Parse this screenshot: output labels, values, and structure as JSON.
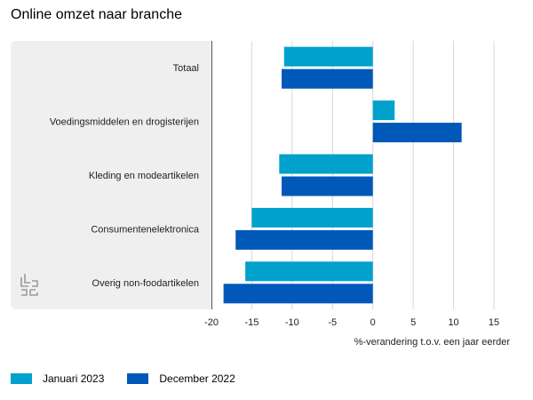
{
  "title": "Online omzet naar branche",
  "colors": {
    "jan2023": "#00A1CD",
    "dec2022": "#0058B8",
    "grid": "#d8d8d8",
    "panel": "#efefef"
  },
  "logo_icon": "cbs-logo-icon",
  "chart_data": {
    "type": "bar",
    "orientation": "horizontal",
    "categories": [
      "Totaal",
      "Voedingsmiddelen en drogisterijen",
      "Kleding en modeartikelen",
      "Consumentenelektronica",
      "Overig non-foodartikelen"
    ],
    "series": [
      {
        "name": "Januari 2023",
        "values": [
          -11,
          2.7,
          -11.6,
          -15,
          -15.8
        ]
      },
      {
        "name": "December 2022",
        "values": [
          -11.3,
          11,
          -11.3,
          -17,
          -18.5
        ]
      }
    ],
    "xlabel": "%-verandering t.o.v. een jaar eerder",
    "xlim": [
      -20,
      15
    ],
    "xticks": [
      "-20",
      "-15",
      "-10",
      "-5",
      "0",
      "5",
      "10",
      "15"
    ],
    "grid": true,
    "legend_position": "bottom-left"
  }
}
